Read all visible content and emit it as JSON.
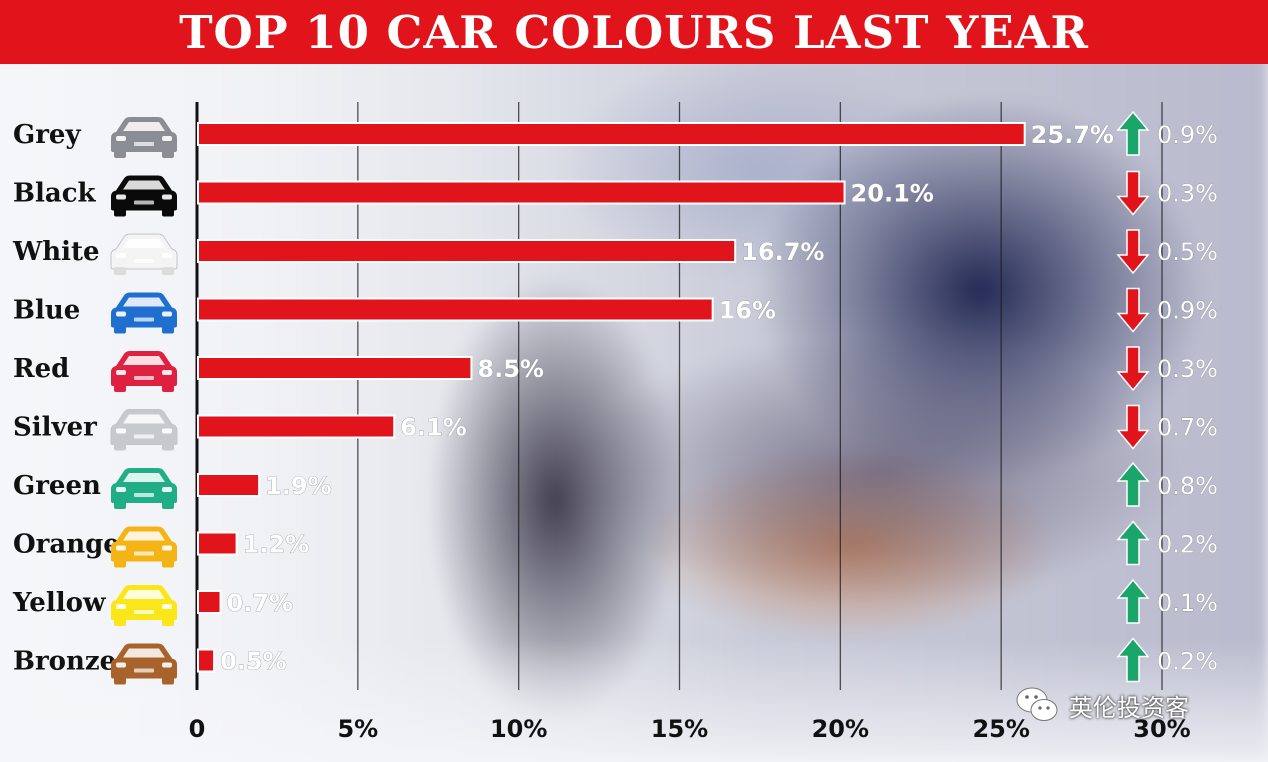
{
  "header": {
    "title": "TOP 10 CAR COLOURS LAST YEAR"
  },
  "watermark": {
    "text": "英伦投资客",
    "icon": "wechat-icon"
  },
  "colors": {
    "bar": "#e1141c",
    "up_arrow": "#1aa56a",
    "down_arrow": "#e1141c",
    "title_bg": "#e1141c"
  },
  "chart_data": {
    "type": "bar",
    "orientation": "horizontal",
    "title": "TOP 10 CAR COLOURS LAST YEAR",
    "categories": [
      "Grey",
      "Black",
      "White",
      "Blue",
      "Red",
      "Silver",
      "Green",
      "Orange",
      "Yellow",
      "Bronze"
    ],
    "values": [
      25.7,
      20.1,
      16.7,
      16,
      8.5,
      6.1,
      1.9,
      1.2,
      0.7,
      0.5
    ],
    "value_labels": [
      "25.7%",
      "20.1%",
      "16.7%",
      "16%",
      "8.5%",
      "6.1%",
      "1.9%",
      "1.2%",
      "0.7%",
      "0.5%"
    ],
    "changes": [
      {
        "direction": "up",
        "label": "0.9%"
      },
      {
        "direction": "down",
        "label": "0.3%"
      },
      {
        "direction": "down",
        "label": "0.5%"
      },
      {
        "direction": "down",
        "label": "0.9%"
      },
      {
        "direction": "down",
        "label": "0.3%"
      },
      {
        "direction": "down",
        "label": "0.7%"
      },
      {
        "direction": "up",
        "label": "0.8%"
      },
      {
        "direction": "up",
        "label": "0.2%"
      },
      {
        "direction": "up",
        "label": "0.1%"
      },
      {
        "direction": "up",
        "label": "0.2%"
      }
    ],
    "car_icon_colors": [
      "#8a8d93",
      "#0a0a0a",
      "#f4f4f4",
      "#1f6fd1",
      "#e02040",
      "#c8c9cc",
      "#1fae85",
      "#f5b416",
      "#fbe619",
      "#a8632c"
    ],
    "xlim": [
      0,
      30
    ],
    "xticks": [
      0,
      5,
      10,
      15,
      20,
      25,
      30
    ],
    "xtick_labels": [
      "0",
      "5%",
      "10%",
      "15%",
      "20%",
      "25%",
      "30%"
    ],
    "grid": true,
    "xlabel": "",
    "ylabel": ""
  }
}
